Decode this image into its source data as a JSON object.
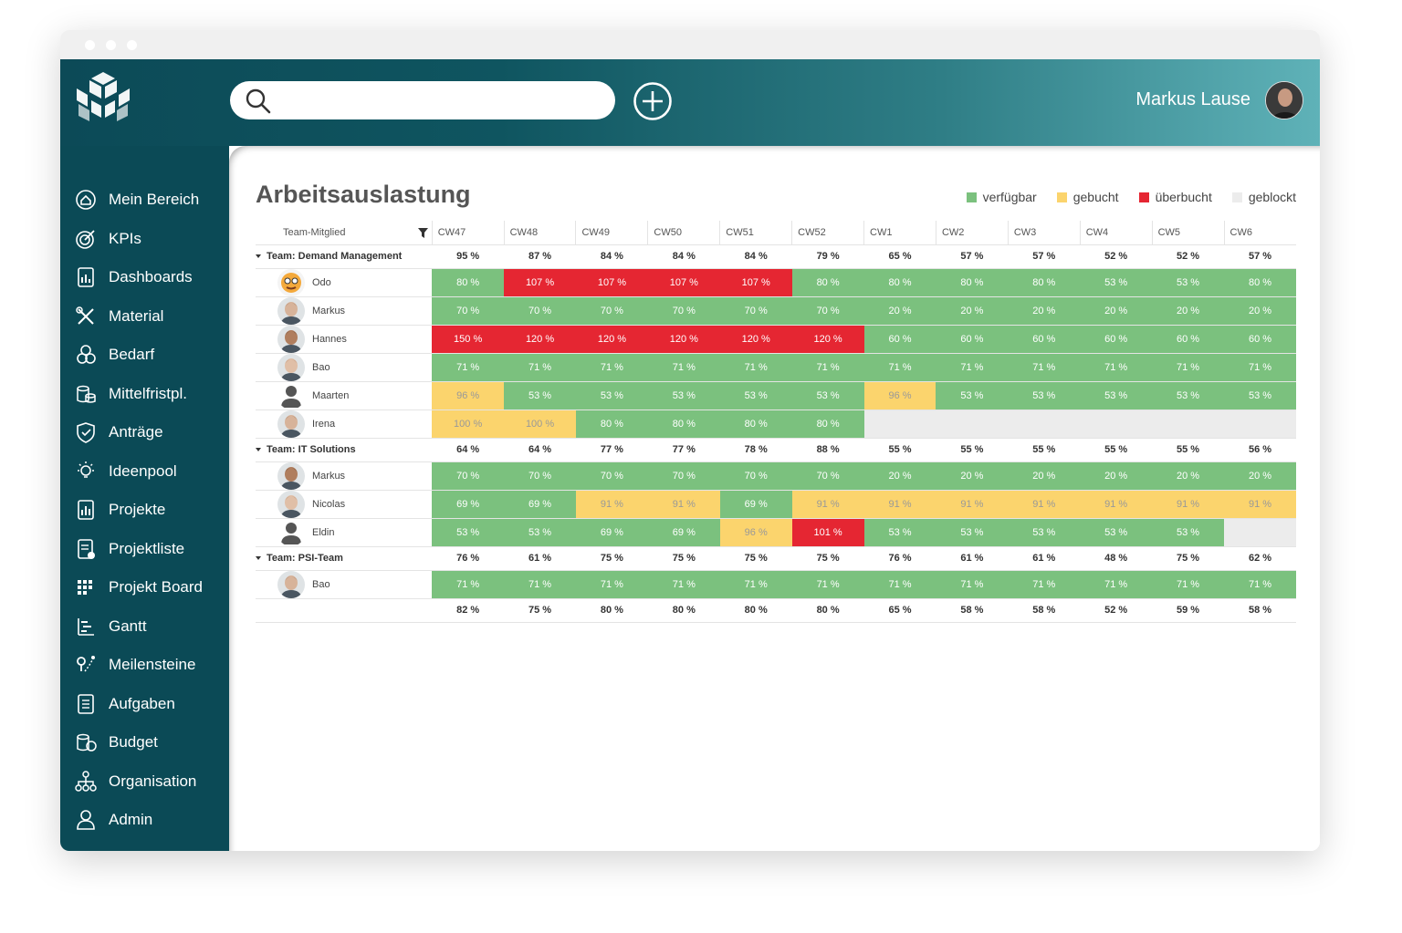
{
  "header": {
    "search_placeholder": "",
    "user_name": "Markus Lause"
  },
  "sidebar": {
    "items": [
      {
        "label": "Mein Bereich",
        "icon": "home-icon"
      },
      {
        "label": "KPIs",
        "icon": "target-icon"
      },
      {
        "label": "Dashboards",
        "icon": "dashboard-icon"
      },
      {
        "label": "Material",
        "icon": "tools-icon"
      },
      {
        "label": "Bedarf",
        "icon": "demand-icon"
      },
      {
        "label": "Mittelfristpl.",
        "icon": "coins-icon"
      },
      {
        "label": "Anträge",
        "icon": "shield-icon"
      },
      {
        "label": "Ideenpool",
        "icon": "bulb-icon"
      },
      {
        "label": "Projekte",
        "icon": "chart-doc-icon"
      },
      {
        "label": "Projektliste",
        "icon": "list-doc-icon"
      },
      {
        "label": "Projekt Board",
        "icon": "board-icon"
      },
      {
        "label": "Gantt",
        "icon": "gantt-icon"
      },
      {
        "label": "Meilensteine",
        "icon": "milestone-icon"
      },
      {
        "label": "Aufgaben",
        "icon": "tasks-icon"
      },
      {
        "label": "Budget",
        "icon": "budget-icon"
      },
      {
        "label": "Organisation",
        "icon": "org-icon"
      },
      {
        "label": "Admin",
        "icon": "admin-icon"
      }
    ]
  },
  "page": {
    "title": "Arbeitsauslastung"
  },
  "legend": [
    {
      "label": "verfügbar",
      "color": "#7bc17e"
    },
    {
      "label": "gebucht",
      "color": "#fbd46d"
    },
    {
      "label": "überbucht",
      "color": "#e52632"
    },
    {
      "label": "geblockt",
      "color": "#ececec"
    }
  ],
  "table": {
    "member_header": "Team-Mitglied",
    "weeks": [
      "CW47",
      "CW48",
      "CW49",
      "CW50",
      "CW51",
      "CW52",
      "CW1",
      "CW2",
      "CW3",
      "CW4",
      "CW5",
      "CW6"
    ],
    "teams": [
      {
        "name": "Team: Demand Management",
        "totals": [
          "95 %",
          "87 %",
          "84 %",
          "84 %",
          "84 %",
          "79 %",
          "65 %",
          "57 %",
          "57 %",
          "52 %",
          "52 %",
          "57 %"
        ],
        "members": [
          {
            "name": "Odo",
            "avatar": "cartoon",
            "values": [
              "80 %",
              "107 %",
              "107 %",
              "107 %",
              "107 %",
              "80 %",
              "80 %",
              "80 %",
              "80 %",
              "53 %",
              "53 %",
              "80 %"
            ],
            "states": [
              "g",
              "r",
              "r",
              "r",
              "r",
              "g",
              "g",
              "g",
              "g",
              "g",
              "g",
              "g"
            ]
          },
          {
            "name": "Markus",
            "avatar": "photo",
            "values": [
              "70 %",
              "70 %",
              "70 %",
              "70 %",
              "70 %",
              "70 %",
              "20 %",
              "20 %",
              "20 %",
              "20 %",
              "20 %",
              "20 %"
            ],
            "states": [
              "g",
              "g",
              "g",
              "g",
              "g",
              "g",
              "g",
              "g",
              "g",
              "g",
              "g",
              "g"
            ]
          },
          {
            "name": "Hannes",
            "avatar": "photo",
            "values": [
              "150 %",
              "120 %",
              "120 %",
              "120 %",
              "120 %",
              "120 %",
              "60 %",
              "60 %",
              "60 %",
              "60 %",
              "60 %",
              "60 %"
            ],
            "states": [
              "r",
              "r",
              "r",
              "r",
              "r",
              "r",
              "g",
              "g",
              "g",
              "g",
              "g",
              "g"
            ]
          },
          {
            "name": "Bao",
            "avatar": "photo",
            "values": [
              "71 %",
              "71 %",
              "71 %",
              "71 %",
              "71 %",
              "71 %",
              "71 %",
              "71 %",
              "71 %",
              "71 %",
              "71 %",
              "71 %"
            ],
            "states": [
              "g",
              "g",
              "g",
              "g",
              "g",
              "g",
              "g",
              "g",
              "g",
              "g",
              "g",
              "g"
            ]
          },
          {
            "name": "Maarten",
            "avatar": "silhouette",
            "values": [
              "96 %",
              "53 %",
              "53 %",
              "53 %",
              "53 %",
              "53 %",
              "96 %",
              "53 %",
              "53 %",
              "53 %",
              "53 %",
              "53 %"
            ],
            "states": [
              "y",
              "g",
              "g",
              "g",
              "g",
              "g",
              "y",
              "g",
              "g",
              "g",
              "g",
              "g"
            ]
          },
          {
            "name": "Irena",
            "avatar": "photo",
            "values": [
              "100 %",
              "100 %",
              "80 %",
              "80 %",
              "80 %",
              "80 %",
              "",
              "",
              "",
              "",
              "",
              ""
            ],
            "states": [
              "y",
              "y",
              "g",
              "g",
              "g",
              "g",
              "x",
              "x",
              "x",
              "x",
              "x",
              "x"
            ]
          }
        ]
      },
      {
        "name": "Team: IT Solutions",
        "totals": [
          "64 %",
          "64 %",
          "77 %",
          "77 %",
          "78 %",
          "88 %",
          "55 %",
          "55 %",
          "55 %",
          "55 %",
          "55 %",
          "56 %"
        ],
        "members": [
          {
            "name": "Markus",
            "avatar": "photo",
            "values": [
              "70 %",
              "70 %",
              "70 %",
              "70 %",
              "70 %",
              "70 %",
              "20 %",
              "20 %",
              "20 %",
              "20 %",
              "20 %",
              "20 %"
            ],
            "states": [
              "g",
              "g",
              "g",
              "g",
              "g",
              "g",
              "g",
              "g",
              "g",
              "g",
              "g",
              "g"
            ]
          },
          {
            "name": "Nicolas",
            "avatar": "photo",
            "values": [
              "69 %",
              "69 %",
              "91 %",
              "91 %",
              "69 %",
              "91 %",
              "91 %",
              "91 %",
              "91 %",
              "91 %",
              "91 %",
              "91 %"
            ],
            "states": [
              "g",
              "g",
              "y",
              "y",
              "g",
              "y",
              "y",
              "y",
              "y",
              "y",
              "y",
              "y"
            ]
          },
          {
            "name": "Eldin",
            "avatar": "silhouette",
            "values": [
              "53 %",
              "53 %",
              "69 %",
              "69 %",
              "96 %",
              "101 %",
              "53 %",
              "53 %",
              "53 %",
              "53 %",
              "53 %",
              ""
            ],
            "states": [
              "g",
              "g",
              "g",
              "g",
              "y",
              "r",
              "g",
              "g",
              "g",
              "g",
              "g",
              "x"
            ]
          }
        ]
      },
      {
        "name": "Team: PSI-Team",
        "totals": [
          "76 %",
          "61 %",
          "75 %",
          "75 %",
          "75 %",
          "75 %",
          "76 %",
          "61 %",
          "61 %",
          "48 %",
          "75 %",
          "62 %"
        ],
        "members": [
          {
            "name": "Bao",
            "avatar": "photo",
            "values": [
              "71 %",
              "71 %",
              "71 %",
              "71 %",
              "71 %",
              "71 %",
              "71 %",
              "71 %",
              "71 %",
              "71 %",
              "71 %",
              "71 %"
            ],
            "states": [
              "g",
              "g",
              "g",
              "g",
              "g",
              "g",
              "g",
              "g",
              "g",
              "g",
              "g",
              "g"
            ]
          }
        ]
      }
    ],
    "grand_totals": [
      "82 %",
      "75 %",
      "80 %",
      "80 %",
      "80 %",
      "80 %",
      "65 %",
      "58 %",
      "58 %",
      "52 %",
      "59 %",
      "58 %"
    ]
  }
}
